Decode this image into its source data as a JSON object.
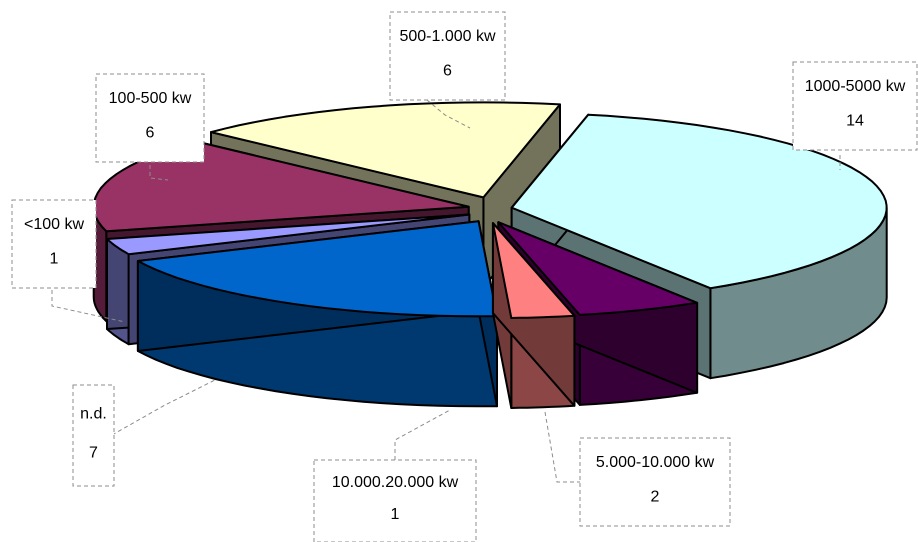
{
  "chart_data": {
    "type": "pie",
    "title": "",
    "three_d": true,
    "exploded": true,
    "legend": "none",
    "categories": [
      "1000-5000 kw",
      "500-1.000 kw",
      "100-500 kw",
      "<100 kw",
      "n.d.",
      "10.000.20.000 kw",
      "5.000-10.000 kw"
    ],
    "values": [
      14,
      6,
      6,
      1,
      7,
      1,
      2
    ],
    "labels": [
      {
        "name": "1000-5000 kw",
        "value": "14"
      },
      {
        "name": "500-1.000 kw",
        "value": "6"
      },
      {
        "name": "100-500 kw",
        "value": "6"
      },
      {
        "name": "<100 kw",
        "value": "1"
      },
      {
        "name": "n.d.",
        "value": "7"
      },
      {
        "name": "10.000.20.000 kw",
        "value": "1"
      },
      {
        "name": "5.000-10.000 kw",
        "value": "2"
      }
    ],
    "colors": {
      "1000-5000 kw": "#ccffff",
      "500-1.000 kw": "#ffffcc",
      "100-500 kw": "#993366",
      "<100 kw": "#9999ff",
      "n.d.": "#0066cc",
      "10.000.20.000 kw": "#ff8080",
      "5.000-10.000 kw": "#660066"
    }
  }
}
